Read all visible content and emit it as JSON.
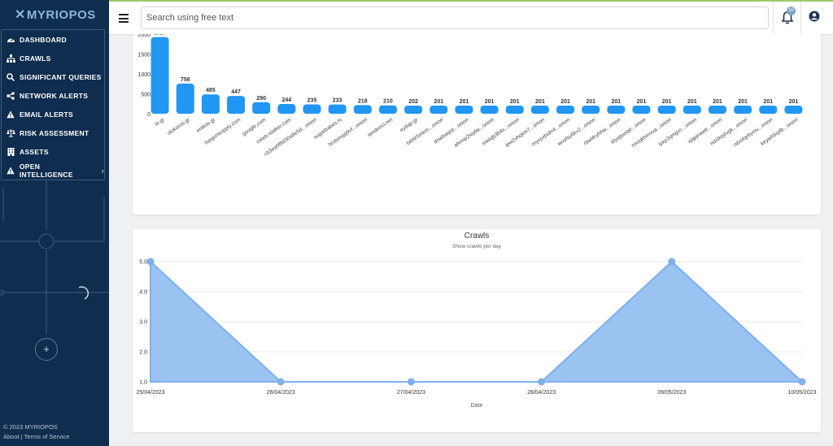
{
  "app": {
    "logo": "MYRIOPOS"
  },
  "sidebar": {
    "items": [
      {
        "label": "DASHBOARD",
        "icon": "gauge-icon"
      },
      {
        "label": "CRAWLS",
        "icon": "sitemap-icon"
      },
      {
        "label": "SIGNIFICANT QUERIES",
        "icon": "search-icon"
      },
      {
        "label": "NETWORK ALERTS",
        "icon": "share-icon"
      },
      {
        "label": "EMAIL ALERTS",
        "icon": "warning-icon"
      },
      {
        "label": "RISK ASSESSMENT",
        "icon": "balance-scale-icon"
      },
      {
        "label": "ASSETS",
        "icon": "building-icon"
      },
      {
        "label": "OPEN INTELLIGENCE",
        "icon": "warning-icon",
        "has_submenu": true
      }
    ],
    "add_button": "+",
    "footer_copyright": "© 2023 MYRIOPOS",
    "footer_about": "About",
    "footer_separator": " | ",
    "footer_terms": "Terms of Service"
  },
  "topbar": {
    "search_placeholder": "Search using free text",
    "notification_count": "10",
    "menu_icon": "hamburger-icon",
    "bell_icon": "bell-icon",
    "user_icon": "user-circle-icon"
  },
  "colors": {
    "accent": "#2196f3",
    "sidebar_bg": "#0f2d4e",
    "area_fill": "#90bdf0",
    "area_stroke": "#7fb0ea"
  },
  "chart_data": [
    {
      "type": "bar",
      "title": "",
      "ylim": [
        0,
        2000
      ],
      "yticks": [
        "0",
        "500",
        "1000",
        "1500",
        "2000"
      ],
      "categories": [
        "in.gr",
        "olokoros.gr",
        "enikos.gr",
        "topgunsupply.com",
        "google.com",
        "celeb-stalker.com",
        "cb3ea5f8d30a9e5d...onion",
        "sugarbabes.tv",
        "hcdxmqq9vf...onion",
        "tendenci.net",
        "eydap.gr",
        "bdnlr5mkm...onion",
        "dnwbaqxjt...onion",
        "ahrmp2kq4w...onion",
        "mwiqb3tt4x...onion",
        "ipw2vhqkm7...onion",
        "myxjvdxdn4...onion",
        "wusfsy6kv2...onion",
        "rbwl4ryhhw...onion",
        "ldyajtuoqd...onion",
        "nsoqkbmvua...onion",
        "iykp2qmgvc...onion",
        "xjqpjnawti...onion",
        "ndxtkq4vgk...onion",
        "n6mfqr6ymv...onion",
        "keywh5rpfb...onion"
      ],
      "values": [
        1927,
        758,
        485,
        447,
        290,
        244,
        235,
        233,
        218,
        210,
        202,
        201,
        201,
        201,
        201,
        201,
        201,
        201,
        201,
        201,
        201,
        201,
        201,
        201,
        201,
        201
      ]
    },
    {
      "type": "area",
      "title": "Crawls",
      "subtitle": "Show crawls per day",
      "xlabel": "Date",
      "ylabel": "",
      "ylim": [
        1,
        5
      ],
      "yticks": [
        "1.0",
        "2.0",
        "3.0",
        "4.0",
        "5.0"
      ],
      "x": [
        "25/04/2023",
        "26/04/2023",
        "27/04/2023",
        "28/04/2023",
        "09/05/2023",
        "10/05/2023"
      ],
      "values": [
        5,
        1,
        1,
        1,
        5,
        1
      ],
      "grid": true
    }
  ]
}
